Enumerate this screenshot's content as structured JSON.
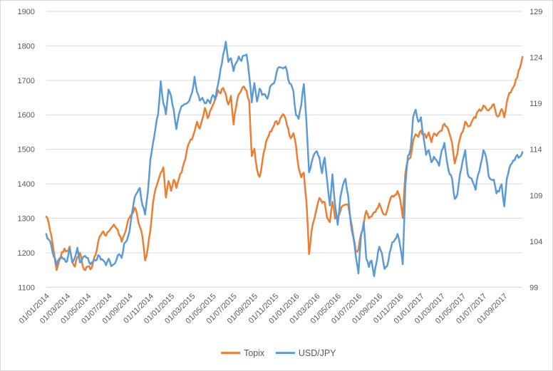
{
  "chart_data": {
    "type": "line",
    "title": "",
    "xlabel": "",
    "ylabel_left": "",
    "ylabel_right": "",
    "grid": "horizontal",
    "legend_position": "bottom",
    "points_per_month": 4,
    "x_range": [
      "01/01/2014",
      "01/11/2017"
    ],
    "x_tick_labels": [
      "01/01/2014",
      "01/03/2014",
      "01/05/2014",
      "01/07/2014",
      "01/09/2014",
      "01/11/2014",
      "01/01/2015",
      "01/03/2015",
      "01/05/2015",
      "01/07/2015",
      "01/09/2015",
      "01/11/2015",
      "01/01/2016",
      "01/03/2016",
      "01/05/2016",
      "01/07/2016",
      "01/09/2016",
      "01/11/2016",
      "01/01/2017",
      "01/03/2017",
      "01/05/2017",
      "01/07/2017",
      "01/09/2017"
    ],
    "left_axis": {
      "min": 1100,
      "max": 1900,
      "ticks": [
        1900,
        1800,
        1700,
        1600,
        1500,
        1400,
        1300,
        1200,
        1100
      ]
    },
    "right_axis": {
      "min": 99,
      "max": 129,
      "ticks": [
        129,
        124,
        119,
        114,
        109,
        104,
        99
      ]
    },
    "series": [
      {
        "name": "Topix",
        "axis": "left",
        "color": "#ED7D31",
        "values": [
          1305,
          1285,
          1250,
          1200,
          1150,
          1178,
          1202,
          1212,
          1205,
          1218,
          1175,
          1160,
          1188,
          1200,
          1162,
          1150,
          1160,
          1152,
          1172,
          1195,
          1232,
          1252,
          1262,
          1250,
          1262,
          1272,
          1282,
          1270,
          1252,
          1232,
          1252,
          1278,
          1302,
          1312,
          1331,
          1308,
          1275,
          1245,
          1178,
          1212,
          1262,
          1342,
          1385,
          1408,
          1432,
          1448,
          1360,
          1408,
          1380,
          1412,
          1388,
          1415,
          1432,
          1462,
          1495,
          1520,
          1528,
          1552,
          1580,
          1560,
          1588,
          1620,
          1590,
          1612,
          1628,
          1648,
          1672,
          1662,
          1678,
          1660,
          1630,
          1655,
          1572,
          1625,
          1660,
          1672,
          1682,
          1670,
          1640,
          1480,
          1502,
          1442,
          1420,
          1462,
          1502,
          1532,
          1552,
          1562,
          1580,
          1572,
          1590,
          1602,
          1588,
          1560,
          1532,
          1547,
          1509,
          1447,
          1419,
          1432,
          1348,
          1196,
          1264,
          1297,
          1332,
          1359,
          1345,
          1347,
          1301,
          1289,
          1348,
          1299,
          1306,
          1320,
          1337,
          1340,
          1340,
          1296,
          1250,
          1204,
          1209,
          1255,
          1283,
          1322,
          1300,
          1305,
          1318,
          1327,
          1343,
          1323,
          1311,
          1322,
          1350,
          1365,
          1368,
          1379,
          1355,
          1301,
          1428,
          1469,
          1477,
          1525,
          1544,
          1536,
          1554,
          1544,
          1533,
          1549,
          1521,
          1546,
          1539,
          1550,
          1554,
          1574,
          1565,
          1544,
          1517,
          1459,
          1488,
          1531,
          1550,
          1580,
          1567,
          1569,
          1587,
          1591,
          1611,
          1611,
          1627,
          1619,
          1613,
          1621,
          1631,
          1599,
          1597,
          1617,
          1593,
          1637,
          1664,
          1674,
          1687,
          1708,
          1735,
          1768
        ]
      },
      {
        "name": "USD/JPY",
        "axis": "right",
        "color": "#5B9BD5",
        "values": [
          104.8,
          104.2,
          103.5,
          102.3,
          101.4,
          102.1,
          102.3,
          102.1,
          101.8,
          103.2,
          101.7,
          102.2,
          103.3,
          101.7,
          102.2,
          102.4,
          102.2,
          101.5,
          101.8,
          101.9,
          102.5,
          102.0,
          101.9,
          101.4,
          102.1,
          101.3,
          101.5,
          102.0,
          102.6,
          102.2,
          103.8,
          104.1,
          105.1,
          107.1,
          108.8,
          109.3,
          109.8,
          107.9,
          106.9,
          109.2,
          112.8,
          114.6,
          116.3,
          117.8,
          121.4,
          119.0,
          117.8,
          120.5,
          119.8,
          118.3,
          116.2,
          117.8,
          118.7,
          118.9,
          119.0,
          119.3,
          120.1,
          121.9,
          120.2,
          119.3,
          119.6,
          119.0,
          119.4,
          119.0,
          119.9,
          119.4,
          121.0,
          122.7,
          124.3,
          125.7,
          123.5,
          123.9,
          122.5,
          123.4,
          124.1,
          123.6,
          124.2,
          124.3,
          122.0,
          119.1,
          121.2,
          119.2,
          120.6,
          119.9,
          120.0,
          119.5,
          120.8,
          121.1,
          121.6,
          122.8,
          122.9,
          122.8,
          123.0,
          121.6,
          121.1,
          120.3,
          117.7,
          117.3,
          118.8,
          121.1,
          117.0,
          111.5,
          112.6,
          113.5,
          113.8,
          113.1,
          111.4,
          113.1,
          110.5,
          107.9,
          111.3,
          108.0,
          105.8,
          108.7,
          110.1,
          110.8,
          109.0,
          106.0,
          104.5,
          102.3,
          100.5,
          104.7,
          106.1,
          102.1,
          101.2,
          101.9,
          100.2,
          101.8,
          103.4,
          102.7,
          101.0,
          101.3,
          102.8,
          103.9,
          104.2,
          104.8,
          103.5,
          101.5,
          110.0,
          113.3,
          114.0,
          117.5,
          118.3,
          117.0,
          117.5,
          115.3,
          113.4,
          113.9,
          112.6,
          113.2,
          112.8,
          112.2,
          113.9,
          114.7,
          112.7,
          111.3,
          110.8,
          108.6,
          109.1,
          111.3,
          112.7,
          113.9,
          111.3,
          110.9,
          110.4,
          109.6,
          111.3,
          112.4,
          113.9,
          113.2,
          111.1,
          110.7,
          110.7,
          109.2,
          109.4,
          110.2,
          107.8,
          110.8,
          112.0,
          112.5,
          112.8,
          113.4,
          113.2,
          113.7
        ]
      }
    ]
  },
  "legend": {
    "topix_label": "Topix",
    "usdjpy_label": "USD/JPY"
  },
  "colors": {
    "background": "#FFFFFF",
    "frame_border": "#D9D9D9",
    "gridline": "#D9D9D9",
    "axis_text": "#595959",
    "topix": "#ED7D31",
    "usdjpy": "#5B9BD5"
  }
}
